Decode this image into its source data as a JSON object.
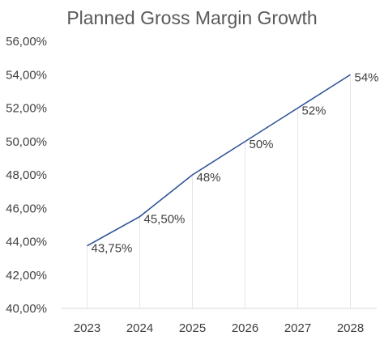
{
  "chart_data": {
    "type": "line",
    "title": "Planned Gross Margin Growth",
    "categories": [
      "2023",
      "2024",
      "2025",
      "2026",
      "2027",
      "2028"
    ],
    "series": [
      {
        "values": [
          43.75,
          45.5,
          48,
          50,
          52,
          54
        ],
        "labels": [
          "43,75%",
          "45,50%",
          "48%",
          "50%",
          "52%",
          "54%"
        ],
        "color": "#2f5597"
      }
    ],
    "ylim": [
      40,
      56
    ],
    "yticks": [
      {
        "value": 40,
        "label": "40,00%"
      },
      {
        "value": 42,
        "label": "42,00%"
      },
      {
        "value": 44,
        "label": "44,00%"
      },
      {
        "value": 46,
        "label": "46,00%"
      },
      {
        "value": 48,
        "label": "48,00%"
      },
      {
        "value": 50,
        "label": "50,00%"
      },
      {
        "value": 52,
        "label": "52,00%"
      },
      {
        "value": 54,
        "label": "54,00%"
      },
      {
        "value": 56,
        "label": "56,00%"
      }
    ],
    "xlabel": "",
    "ylabel": "",
    "grid": false,
    "drop_lines": true,
    "legend": "none"
  }
}
